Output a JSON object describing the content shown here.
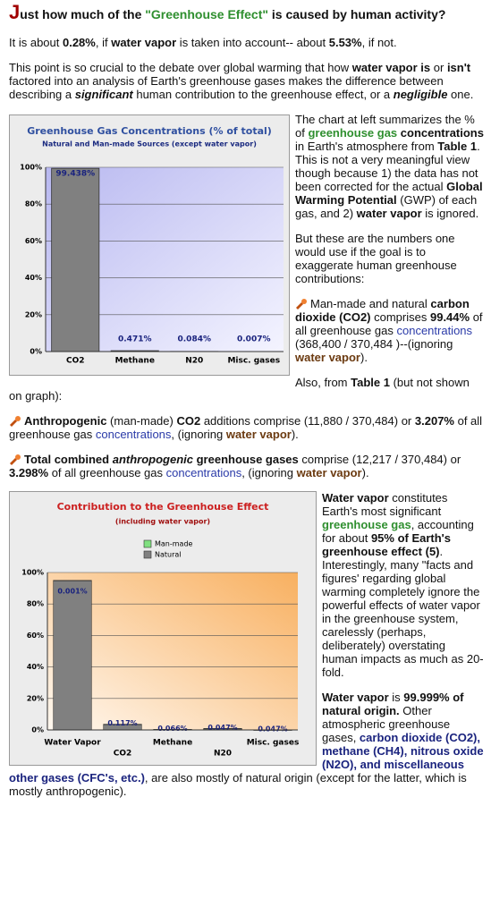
{
  "heading": [
    "J",
    "ust how much of the ",
    "\"Greenhouse Effect\"",
    " is caused by human activity?"
  ],
  "p1": [
    "It is about ",
    "0.28%",
    ", if ",
    "water vapor",
    " is taken into account-- about ",
    "5.53%",
    ", if not."
  ],
  "p2": [
    "This point is so crucial to the debate over global warming that how ",
    "water vapor is",
    " or ",
    "isn't",
    " factored into an analysis of Earth's greenhouse gases makes the difference between describing a ",
    "significant",
    " human contribution to the greenhouse effect, or a ",
    "negligible",
    " one."
  ],
  "side1": [
    "The chart at left summarizes the % of ",
    "greenhouse gas",
    " ",
    "concentrations",
    " in Earth's atmosphere from ",
    "Table 1",
    ". This is not a very meaningful view though because 1) the data has not been corrected for the actual ",
    "Global Warming Potential",
    " (GWP) of each gas, and 2) ",
    "water vapor",
    " is ignored."
  ],
  "side2": "But these are the numbers one would use if the goal is to exaggerate human greenhouse contributions:",
  "bullet1": [
    "Man-made and natural ",
    "carbon dioxide (CO2)",
    " comprises ",
    "99.44%",
    " of all greenhouse gas ",
    "concentrations",
    " (368,400 / 370,484 )--(ignoring ",
    "water vapor",
    ")."
  ],
  "p3": [
    "Also, from ",
    "Table 1",
    " (but not shown on graph):"
  ],
  "bullet2": [
    "Anthropogenic",
    " (man-made) ",
    "CO2",
    " additions comprise (11,880 / 370,484) or ",
    "3.207%",
    " of all greenhouse gas ",
    "concentrations",
    ", (ignoring ",
    "water vapor",
    ")."
  ],
  "bullet3": [
    "Total combined ",
    "anthropogenic",
    " greenhouse gases",
    " comprise (12,217 / 370,484) or ",
    "3.298%",
    " of all greenhouse gas ",
    "concentrations",
    ", (ignoring ",
    "water vapor",
    ")."
  ],
  "side3": [
    "Water vapor",
    " constitutes Earth's most significant ",
    "greenhouse gas",
    ", accounting for about ",
    "95% of Earth's greenhouse effect",
    " ",
    "(5)",
    ". Interestingly, many \"facts and figures' regarding global warming completely ignore the powerful effects of water vapor in the greenhouse system, carelessly (perhaps, deliberately) overstating human impacts as much as 20-fold."
  ],
  "p4": [
    "Water vapor",
    " is ",
    "99.999% of natural origin.",
    " Other atmospheric greenhouse gases, ",
    "carbon dioxide (CO2), methane (CH4), nitrous oxide (N2O), and miscellaneous other gases (CFC's, etc.)",
    ", are also mostly of natural origin (except for the latter, which is mostly anthropogenic)."
  ],
  "chart_data": [
    {
      "type": "bar",
      "title": "Greenhouse Gas Concentrations (% of total)",
      "subtitle": "Natural and Man-made Sources (except water vapor)",
      "categories": [
        "CO2",
        "Methane",
        "N20",
        "Misc. gases"
      ],
      "values": [
        99.438,
        0.471,
        0.084,
        0.007
      ],
      "value_labels": [
        "99.438%",
        "0.471%",
        "0.084%",
        "0.007%"
      ],
      "color": "#808080",
      "ylim": [
        0,
        100
      ],
      "yticks": [
        {
          "value": 0,
          "label": "0%"
        },
        {
          "value": 20,
          "label": "20%"
        },
        {
          "value": 40,
          "label": "40%"
        },
        {
          "value": 60,
          "label": "60%"
        },
        {
          "value": 80,
          "label": "80%"
        },
        {
          "value": 100,
          "label": "100%"
        }
      ],
      "grid": true
    },
    {
      "type": "stacked_bar",
      "title": "Contribution to the Greenhouse Effect",
      "subtitle": "(including water vapor)",
      "categories": [
        "Water Vapor",
        "CO2",
        "Methane",
        "N20",
        "Misc. gases"
      ],
      "series": [
        {
          "name": "Man-made",
          "color": "#80e080",
          "values": [
            0.001,
            0.117,
            0.066,
            0.047,
            0.047
          ],
          "value_labels": [
            "0.001%",
            "0.117%",
            "0.066%",
            "0.047%",
            "0.047%"
          ]
        },
        {
          "name": "Natural",
          "color": "#808080",
          "values": [
            94.999,
            3.502,
            0.294,
            0.903,
            0.025
          ]
        }
      ],
      "ylim": [
        0,
        100
      ],
      "yticks": [
        {
          "value": 0,
          "label": "0%"
        },
        {
          "value": 20,
          "label": "20%"
        },
        {
          "value": 40,
          "label": "40%"
        },
        {
          "value": 60,
          "label": "60%"
        },
        {
          "value": 80,
          "label": "80%"
        },
        {
          "value": 100,
          "label": "100%"
        }
      ],
      "grid": true,
      "legend": "top"
    }
  ]
}
